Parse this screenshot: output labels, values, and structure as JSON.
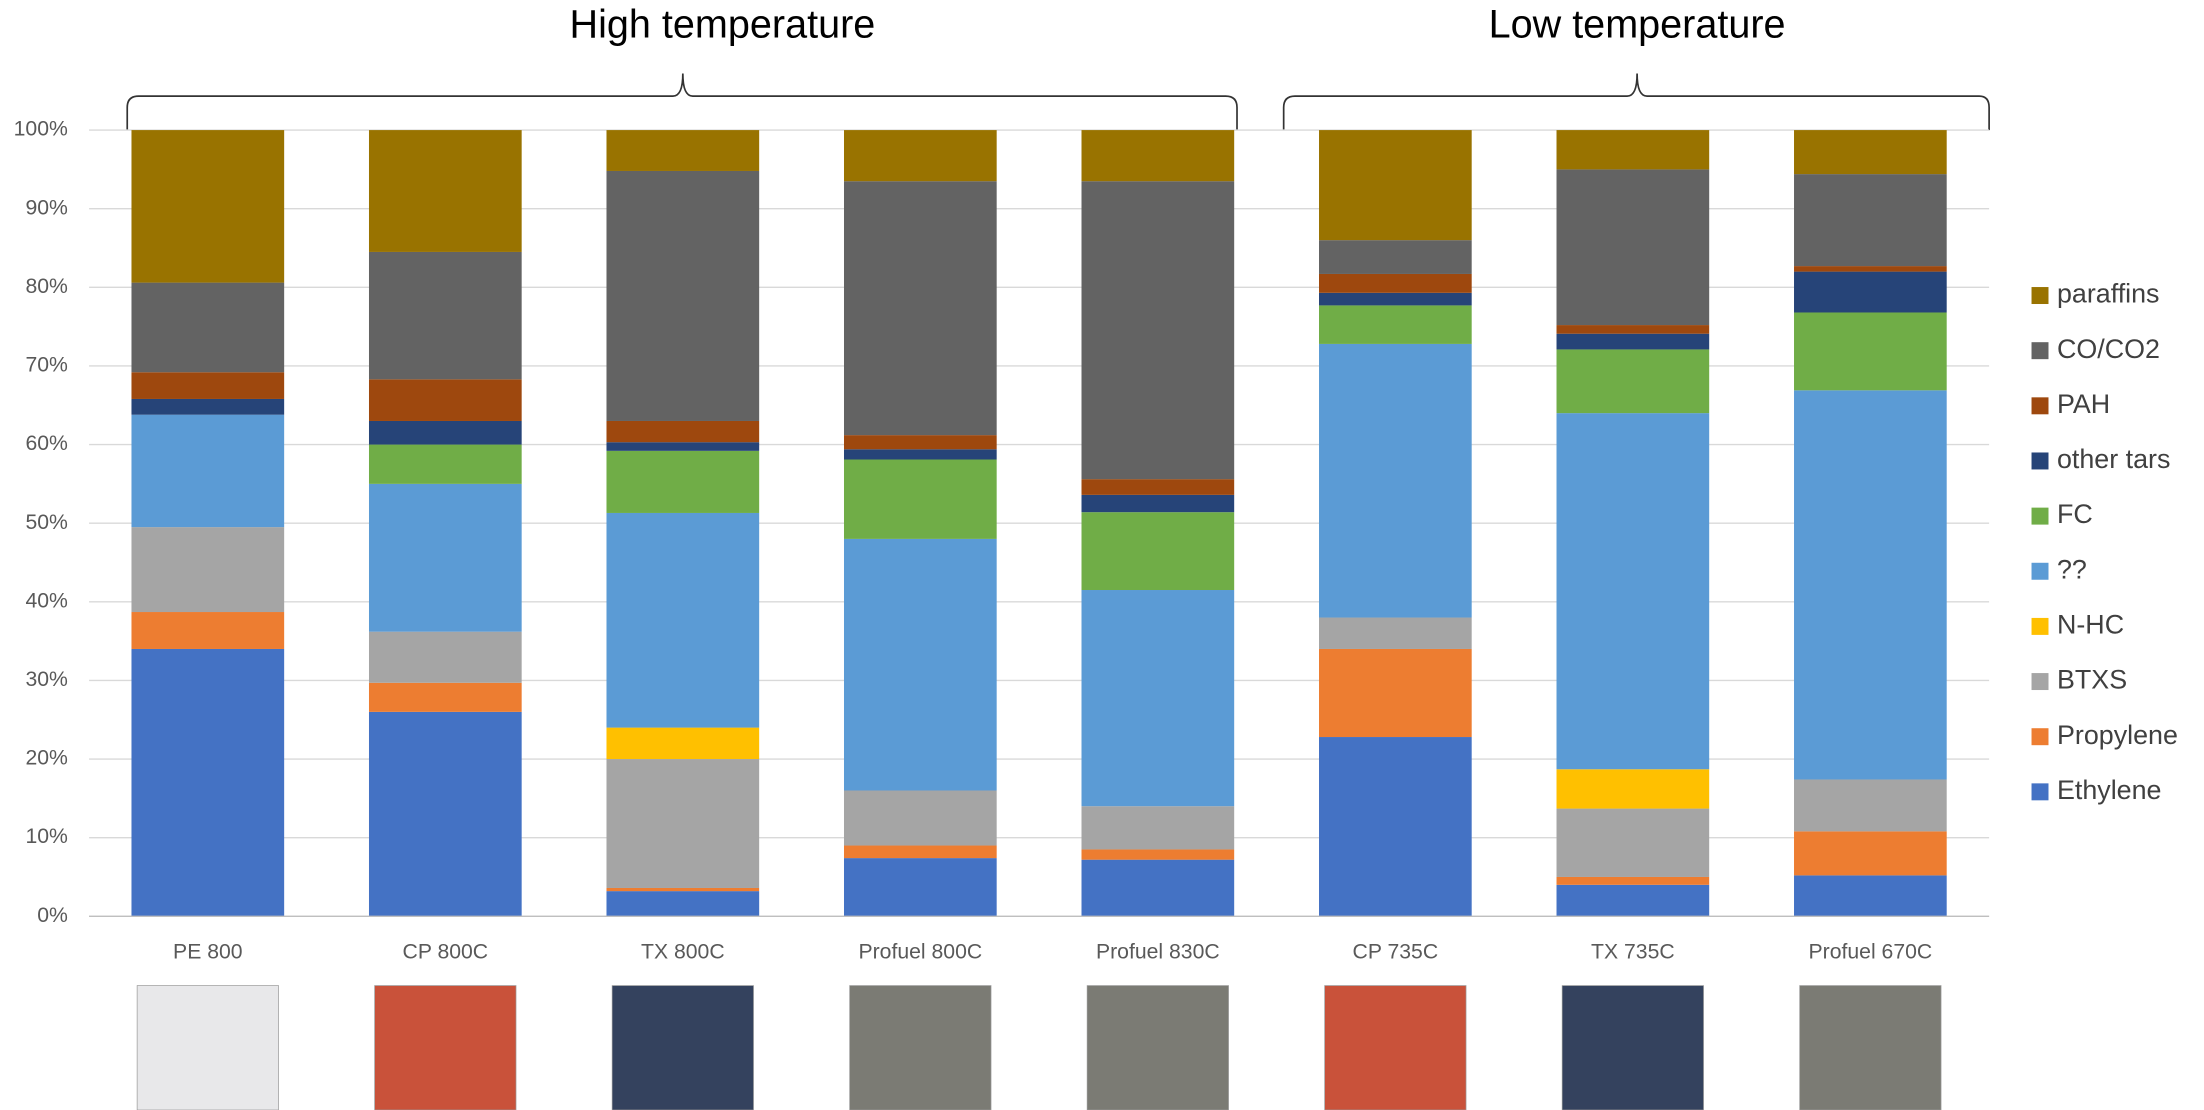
{
  "chart_data": {
    "type": "stacked_bar",
    "annotations": [
      "High temperature",
      "Low temperature"
    ],
    "categories": [
      "PE 800",
      "CP 800C",
      "TX 800C",
      "Profuel  800C",
      "Profuel 830C",
      "CP 735C",
      "TX 735C",
      "Profuel 670C"
    ],
    "series": [
      {
        "name": "Ethylene",
        "color": "#4472c4",
        "values": [
          34,
          26,
          3.2,
          7.4,
          7.2,
          22.8,
          4,
          5.2
        ]
      },
      {
        "name": "Propylene",
        "color": "#ed7d31",
        "values": [
          4.7,
          3.7,
          0.4,
          1.6,
          1.3,
          11.2,
          1,
          5.6
        ]
      },
      {
        "name": "BTXS",
        "color": "#a5a5a5",
        "values": [
          10.8,
          6.5,
          16.4,
          7,
          5.5,
          4,
          8.7,
          6.6
        ]
      },
      {
        "name": "N-HC",
        "color": "#ffc000",
        "values": [
          0,
          0,
          4,
          0,
          0,
          0,
          5,
          0
        ]
      },
      {
        "name": "??",
        "color": "#5b9bd5",
        "values": [
          14.3,
          18.8,
          27.3,
          32,
          27.5,
          34.8,
          45.3,
          49.5
        ]
      },
      {
        "name": "FC",
        "color": "#70ad47",
        "values": [
          0,
          5,
          7.9,
          10.1,
          9.9,
          4.9,
          8.1,
          9.9
        ]
      },
      {
        "name": "other tars",
        "color": "#264478",
        "values": [
          2,
          3,
          1.1,
          1.3,
          2.2,
          1.6,
          2,
          5.2
        ]
      },
      {
        "name": "PAH",
        "color": "#9e480e",
        "values": [
          3.4,
          5.3,
          2.7,
          1.8,
          2,
          2.4,
          1.1,
          0.7
        ]
      },
      {
        "name": "CO/CO2",
        "color": "#636363",
        "values": [
          11.4,
          16.2,
          31.8,
          32.3,
          37.9,
          4.3,
          19.8,
          11.7
        ]
      },
      {
        "name": "paraffins",
        "color": "#997300",
        "values": [
          19.4,
          15.5,
          5.2,
          6.5,
          6.5,
          14,
          5,
          5.6
        ]
      }
    ],
    "ylim": [
      0,
      100
    ],
    "yticks": [
      {
        "value": 0,
        "label": "0%"
      },
      {
        "value": 10,
        "label": "10%"
      },
      {
        "value": 20,
        "label": "20%"
      },
      {
        "value": 30,
        "label": "30%"
      },
      {
        "value": 40,
        "label": "40%"
      },
      {
        "value": 50,
        "label": "50%"
      },
      {
        "value": 60,
        "label": "60%"
      },
      {
        "value": 70,
        "label": "70%"
      },
      {
        "value": 80,
        "label": "80%"
      },
      {
        "value": 90,
        "label": "90%"
      },
      {
        "value": 100,
        "label": "100%"
      }
    ],
    "grid": true,
    "legend": "right"
  }
}
